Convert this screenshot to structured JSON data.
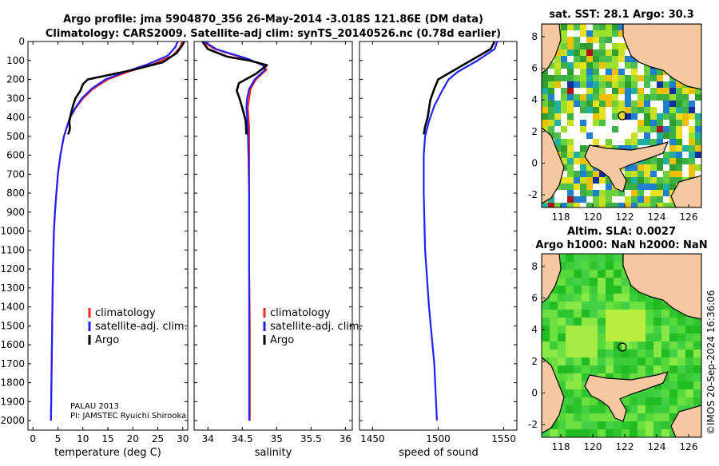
{
  "title_line1": "Argo profile: jma 5904870_356 26-May-2014 -3.018S 121.86E (DM data)",
  "title_line2": "Climatology: CARS2009. Satellite-adj clim: synTS_20140526.nc (0.78d earlier)",
  "colors": {
    "climatology": "#ff2020",
    "satellite": "#2020ff",
    "argo": "#000000",
    "land": "#f5c8a0"
  },
  "legend": [
    "climatology",
    "satellite-adj. clim.",
    "Argo"
  ],
  "note_line1": "PALAU 2013",
  "note_line2": "PI: JAMSTEC Ryuichi Shirooka",
  "sst_title": "sat. SST: 28.1 Argo: 30.3",
  "sla_title1": "Altim. SLA: 0.0027",
  "sla_title2": "Argo h1000: NaN h2000: NaN",
  "watermark": "©IMOS 20-Sep-2024 16:36:06",
  "depth_ticks": [
    "0",
    "100",
    "200",
    "300",
    "400",
    "500",
    "600",
    "700",
    "800",
    "900",
    "1000",
    "1100",
    "1200",
    "1300",
    "1400",
    "1500",
    "1600",
    "1700",
    "1800",
    "1900",
    "2000"
  ],
  "map_x_ticks": [
    "118",
    "120",
    "122",
    "124",
    "126"
  ],
  "map_y_ticks": [
    "8",
    "6",
    "4",
    "2",
    "0",
    "-2"
  ],
  "chart_data": [
    {
      "type": "line",
      "xlabel": "temperature (deg C)",
      "xlim": [
        -1,
        31
      ],
      "ylim": [
        2050,
        0
      ],
      "xticks": [
        "0",
        "5",
        "10",
        "15",
        "20",
        "25",
        "30"
      ],
      "series": [
        {
          "name": "climatology",
          "x": [
            29.9,
            29.5,
            28.0,
            24.0,
            19.0,
            15.0,
            12.0,
            10.0,
            8.6,
            7.5,
            6.8,
            6.2,
            5.5,
            5.0,
            4.7,
            4.4,
            4.2,
            4.0,
            3.9,
            3.8,
            3.7,
            3.6
          ],
          "depth": [
            0,
            30,
            75,
            120,
            160,
            200,
            250,
            300,
            350,
            400,
            450,
            500,
            600,
            700,
            800,
            900,
            1000,
            1200,
            1400,
            1600,
            1800,
            2000
          ]
        },
        {
          "name": "satellite-adj. clim.",
          "x": [
            29.0,
            28.5,
            27.0,
            23.0,
            18.5,
            14.5,
            11.7,
            9.8,
            8.5,
            7.4,
            6.8,
            6.2,
            5.5,
            5.0,
            4.7,
            4.4,
            4.2,
            4.0,
            3.9,
            3.8,
            3.7,
            3.6
          ],
          "depth": [
            0,
            30,
            75,
            120,
            160,
            200,
            250,
            300,
            350,
            400,
            450,
            500,
            600,
            700,
            800,
            900,
            1000,
            1200,
            1400,
            1600,
            1800,
            2000
          ]
        },
        {
          "name": "Argo",
          "x": [
            30.3,
            29.9,
            28.8,
            26.0,
            20.0,
            11.0,
            10.0,
            9.5,
            8.5,
            8.0,
            7.6,
            7.3,
            7.4,
            7.2,
            7.0
          ],
          "depth": [
            0,
            20,
            60,
            110,
            150,
            200,
            225,
            260,
            300,
            340,
            380,
            420,
            460,
            480,
            490
          ]
        }
      ]
    },
    {
      "type": "line",
      "xlabel": "salinity",
      "xlim": [
        33.8,
        36.1
      ],
      "ylim": [
        2050,
        0
      ],
      "xticks": [
        "34",
        "34.5",
        "35",
        "35.5",
        "36"
      ],
      "series": [
        {
          "name": "climatology",
          "x": [
            33.92,
            34.1,
            34.55,
            34.82,
            34.85,
            34.7,
            34.62,
            34.6,
            34.58,
            34.6,
            34.6,
            34.6,
            34.6,
            34.6,
            34.61,
            34.61,
            34.61
          ],
          "depth": [
            0,
            40,
            90,
            125,
            150,
            200,
            250,
            300,
            350,
            450,
            600,
            800,
            1000,
            1200,
            1500,
            1800,
            2000
          ]
        },
        {
          "name": "satellite-adj. clim.",
          "x": [
            33.95,
            34.12,
            34.57,
            34.8,
            34.83,
            34.68,
            34.6,
            34.57,
            34.56,
            34.58,
            34.59,
            34.6,
            34.6,
            34.6,
            34.6,
            34.6,
            34.6
          ],
          "depth": [
            0,
            40,
            90,
            125,
            150,
            200,
            250,
            300,
            350,
            450,
            600,
            800,
            1000,
            1200,
            1500,
            1800,
            2000
          ]
        },
        {
          "name": "Argo",
          "x": [
            33.92,
            34.0,
            34.28,
            34.6,
            34.86,
            34.7,
            34.45,
            34.42,
            34.46,
            34.5,
            34.55,
            34.56
          ],
          "depth": [
            0,
            40,
            80,
            100,
            125,
            170,
            220,
            260,
            300,
            350,
            420,
            490
          ]
        }
      ]
    },
    {
      "type": "line",
      "xlabel": "speed of sound",
      "xlim": [
        1440,
        1560
      ],
      "ylim": [
        2050,
        0
      ],
      "xticks": [
        "1450",
        "1500",
        "1550"
      ],
      "series": [
        {
          "name": "satellite-adj. clim.",
          "x": [
            1545,
            1543,
            1530,
            1515,
            1508,
            1503,
            1497,
            1493,
            1490,
            1489,
            1489,
            1490,
            1493,
            1497,
            1499
          ],
          "depth": [
            0,
            40,
            100,
            160,
            200,
            260,
            340,
            420,
            500,
            600,
            800,
            1100,
            1400,
            1700,
            2000
          ]
        },
        {
          "name": "Argo",
          "x": [
            1543,
            1540,
            1520,
            1500,
            1497,
            1494,
            1492,
            1490,
            1489
          ],
          "depth": [
            0,
            40,
            120,
            200,
            250,
            310,
            400,
            450,
            490
          ]
        }
      ]
    }
  ]
}
